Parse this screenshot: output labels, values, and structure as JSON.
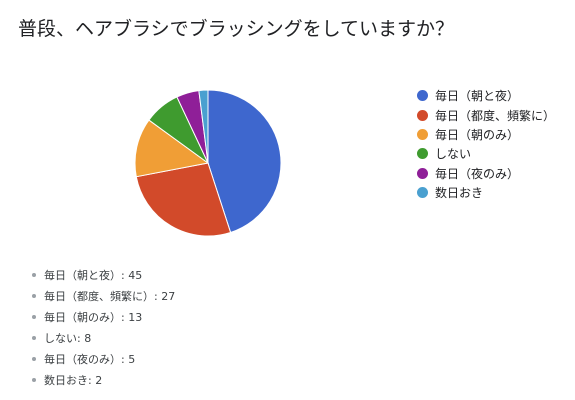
{
  "question": "普段、ヘアブラシでブラッシングをしていますか？",
  "chart_data": {
    "type": "pie",
    "categories": [
      "毎日（朝と夜）",
      "毎日（都度、頻繁に）",
      "毎日（朝のみ）",
      "しない",
      "毎日（夜のみ）",
      "数日おき"
    ],
    "values": [
      45,
      27,
      13,
      8,
      5,
      2
    ],
    "colors": [
      "#3e67ce",
      "#d24a2a",
      "#f09e36",
      "#3f9b2f",
      "#8f1f98",
      "#4aa0d0"
    ],
    "legend_position": "right"
  },
  "summary": [
    {
      "label": "毎日（朝と夜）",
      "count": 45
    },
    {
      "label": "毎日（都度、頻繁に）",
      "count": 27
    },
    {
      "label": "毎日（朝のみ）",
      "count": 13
    },
    {
      "label": "しない",
      "count": 8
    },
    {
      "label": "毎日（夜のみ）",
      "count": 5
    },
    {
      "label": "数日おき",
      "count": 2
    }
  ]
}
